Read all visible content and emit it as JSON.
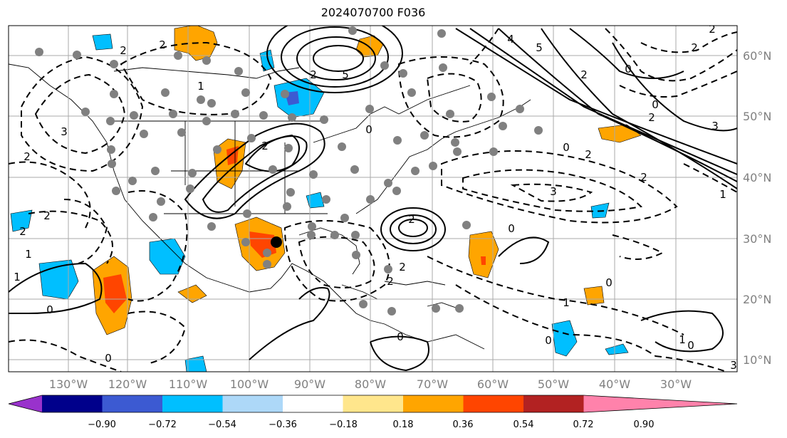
{
  "title": "2024070700 F036",
  "lon_labels": [
    "130°W",
    "120°W",
    "110°W",
    "100°W",
    "90°W",
    "80°W",
    "70°W",
    "60°W",
    "50°W",
    "40°W",
    "30°W"
  ],
  "lat_labels": [
    "60°N",
    "50°N",
    "40°N",
    "30°N",
    "20°N",
    "10°N"
  ],
  "colorbar": {
    "ticks": [
      "−0.90",
      "−0.72",
      "−0.54",
      "−0.36",
      "−0.18",
      "0.18",
      "0.36",
      "0.54",
      "0.72",
      "0.90"
    ],
    "colors": [
      "#9932cc",
      "#00008b",
      "#3c5ad2",
      "#00bfff",
      "#add8f8",
      "#ffffff",
      "#ffe68c",
      "#ffa500",
      "#ff4500",
      "#b22222",
      "#ff82ab"
    ]
  },
  "contour_labels": [
    "2",
    "2",
    "3",
    "2",
    "2",
    "2",
    "1",
    "5",
    "4",
    "5",
    "2",
    "0",
    "2",
    "3",
    "0",
    "2",
    "2",
    "1",
    "3",
    "2",
    "0",
    "2",
    "2",
    "2",
    "0",
    "1",
    "0",
    "0",
    "0",
    "0",
    "1",
    "0",
    "3",
    "2",
    "2",
    "0",
    "1",
    "0",
    "1",
    "2"
  ],
  "colors": {
    "grid": "#aaaaaa",
    "station": "#808080",
    "coast": "#000000"
  }
}
